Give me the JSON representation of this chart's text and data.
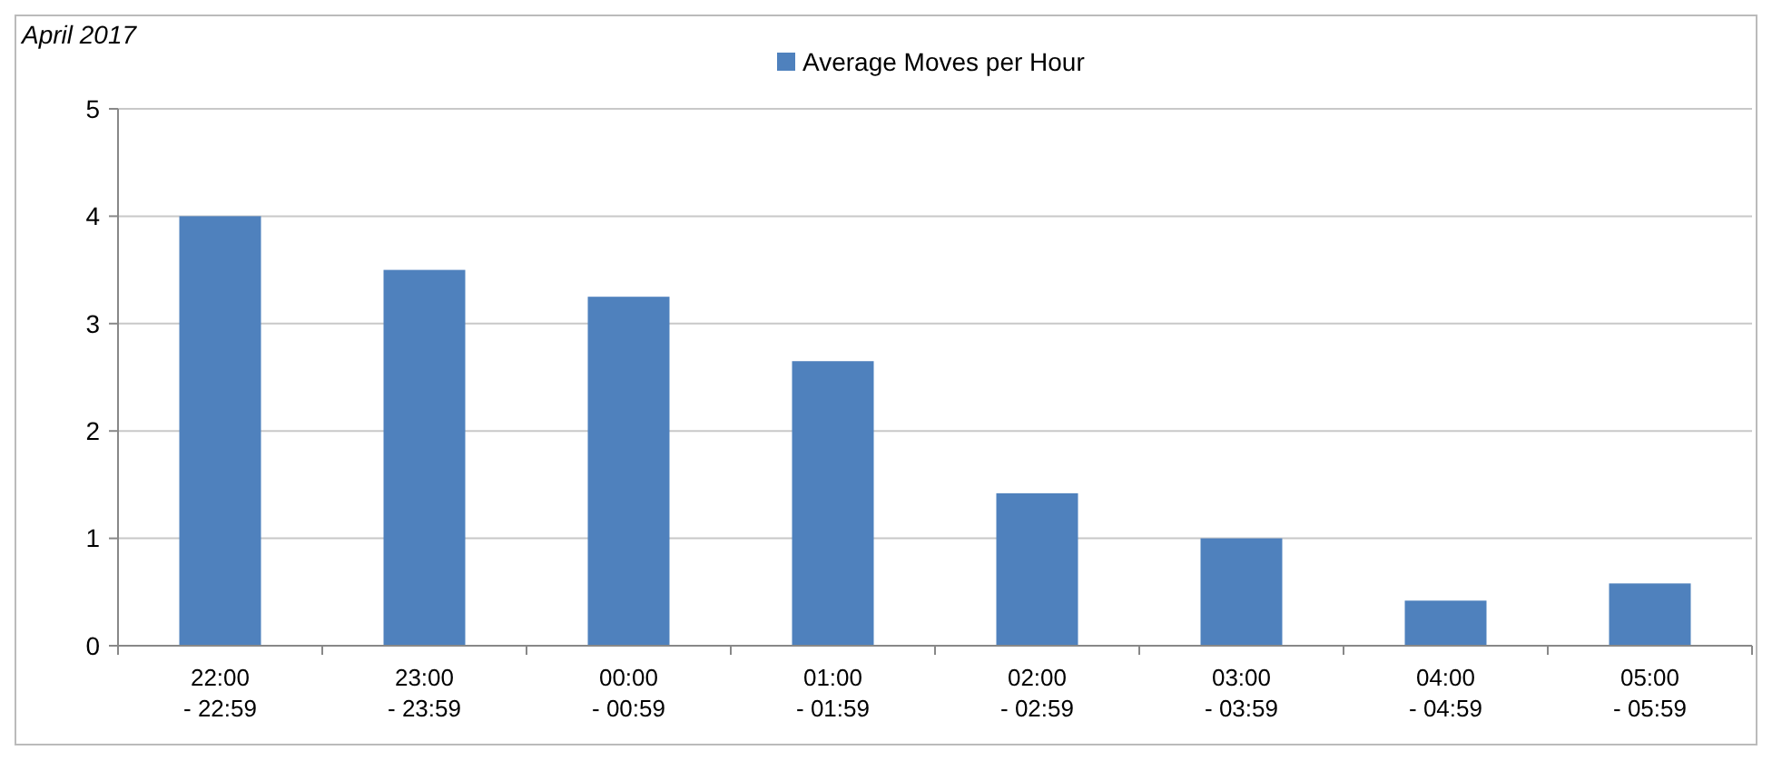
{
  "chart_data": {
    "type": "bar",
    "title": "April 2017",
    "categories": [
      "22:00\n- 22:59",
      "23:00\n- 23:59",
      "00:00\n- 00:59",
      "01:00\n- 01:59",
      "02:00\n- 02:59",
      "03:00\n- 03:59",
      "04:00\n- 04:59",
      "05:00\n- 05:59"
    ],
    "series": [
      {
        "name": "Average Moves per Hour",
        "color": "#4f81bd",
        "values": [
          4,
          3.5,
          3.25,
          2.65,
          1.42,
          1.0,
          0.42,
          0.58
        ]
      }
    ],
    "ylim": [
      0,
      5
    ],
    "yticks": [
      0,
      1,
      2,
      3,
      4,
      5
    ],
    "grid": "y",
    "legend": "top"
  }
}
